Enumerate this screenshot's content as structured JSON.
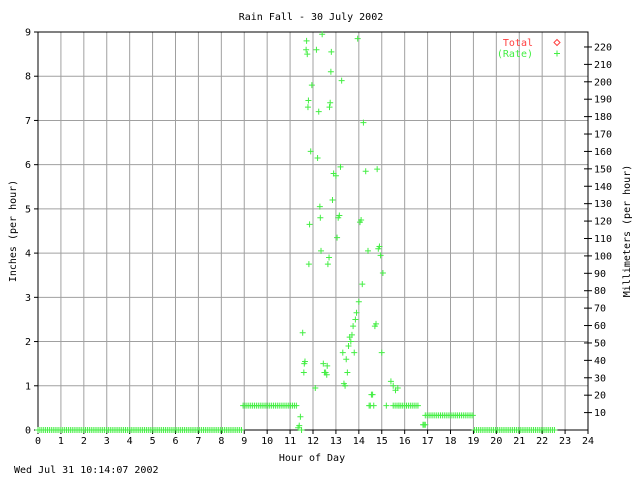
{
  "chart_data": {
    "type": "scatter",
    "title": "Rain Fall - 30 July 2002",
    "xlabel": "Hour of Day",
    "ylabel": "Inches (per hour)",
    "y2label": "Millimeters (per hour)",
    "xlim": [
      0,
      24
    ],
    "ylim": [
      0,
      9
    ],
    "y2lim": [
      0,
      228.6
    ],
    "x_ticks": [
      0,
      1,
      2,
      3,
      4,
      5,
      6,
      7,
      8,
      9,
      10,
      11,
      12,
      13,
      14,
      15,
      16,
      17,
      18,
      19,
      20,
      21,
      22,
      23,
      24
    ],
    "y_ticks": [
      0,
      1,
      2,
      3,
      4,
      5,
      6,
      7,
      8,
      9
    ],
    "y2_ticks": [
      10,
      20,
      30,
      40,
      50,
      60,
      70,
      80,
      90,
      100,
      110,
      120,
      130,
      140,
      150,
      160,
      170,
      180,
      190,
      200,
      210,
      220
    ],
    "grid": true,
    "legend_position": "top-right",
    "colors": {
      "total": "#ff4040",
      "rate": "#44ee44",
      "grid": "#a0a0a0"
    },
    "series": [
      {
        "name": "Total",
        "marker": "diamond",
        "values": []
      },
      {
        "name": "(Rate)",
        "marker": "plus",
        "segments": [
          {
            "x_start": 0.0,
            "x_end": 8.95,
            "step": 0.083,
            "y": 0.0
          },
          {
            "x_start": 8.95,
            "x_end": 11.3,
            "step": 0.083,
            "y": 0.55
          },
          {
            "x_start": 15.5,
            "x_end": 16.6,
            "step": 0.083,
            "y": 0.55
          },
          {
            "x_start": 16.9,
            "x_end": 19.05,
            "step": 0.083,
            "y": 0.33
          },
          {
            "x_start": 19.05,
            "x_end": 22.6,
            "step": 0.083,
            "y": 0.0
          }
        ],
        "x": [
          11.35,
          11.4,
          11.45,
          11.5,
          11.55,
          11.6,
          11.62,
          11.65,
          11.7,
          11.72,
          11.75,
          11.78,
          11.8,
          11.82,
          11.85,
          11.9,
          11.95,
          12.1,
          12.15,
          12.2,
          12.25,
          12.3,
          12.32,
          12.35,
          12.4,
          12.45,
          12.5,
          12.55,
          12.6,
          12.62,
          12.65,
          12.7,
          12.72,
          12.75,
          12.78,
          12.8,
          12.85,
          12.9,
          13.0,
          13.05,
          13.1,
          13.15,
          13.2,
          13.25,
          13.3,
          13.35,
          13.4,
          13.45,
          13.5,
          13.55,
          13.6,
          13.65,
          13.7,
          13.75,
          13.8,
          13.85,
          13.9,
          13.95,
          14.0,
          14.05,
          14.1,
          14.15,
          14.2,
          14.3,
          14.4,
          14.45,
          14.5,
          14.55,
          14.6,
          14.65,
          14.7,
          14.75,
          14.8,
          14.85,
          14.9,
          14.95,
          15.0,
          15.05,
          15.2,
          15.4,
          15.5,
          15.6,
          15.7,
          15.75,
          16.8,
          16.85,
          16.9
        ],
        "values": [
          0.05,
          0.1,
          0.3,
          0.0,
          2.2,
          1.3,
          1.5,
          1.55,
          8.6,
          8.8,
          8.5,
          7.3,
          7.45,
          3.75,
          4.65,
          6.3,
          7.8,
          0.95,
          8.6,
          6.15,
          7.2,
          5.05,
          4.8,
          4.05,
          8.95,
          1.5,
          1.3,
          1.3,
          1.25,
          1.45,
          3.75,
          3.9,
          7.3,
          7.4,
          8.1,
          8.55,
          5.2,
          5.8,
          5.75,
          4.35,
          4.8,
          4.85,
          5.95,
          7.9,
          1.75,
          1.05,
          1.0,
          1.6,
          1.3,
          1.9,
          2.1,
          2.0,
          2.15,
          2.35,
          1.75,
          2.5,
          2.65,
          8.85,
          2.9,
          4.7,
          4.75,
          3.3,
          6.95,
          5.85,
          4.05,
          0.55,
          0.55,
          0.8,
          0.8,
          0.55,
          2.35,
          2.4,
          5.9,
          4.1,
          4.15,
          3.95,
          1.75,
          3.55,
          0.55,
          1.1,
          1.0,
          0.9,
          0.95,
          0.55,
          0.12,
          0.12,
          0.12
        ]
      }
    ]
  },
  "footer": {
    "timestamp": "Wed Jul 31 10:14:07 2002"
  }
}
